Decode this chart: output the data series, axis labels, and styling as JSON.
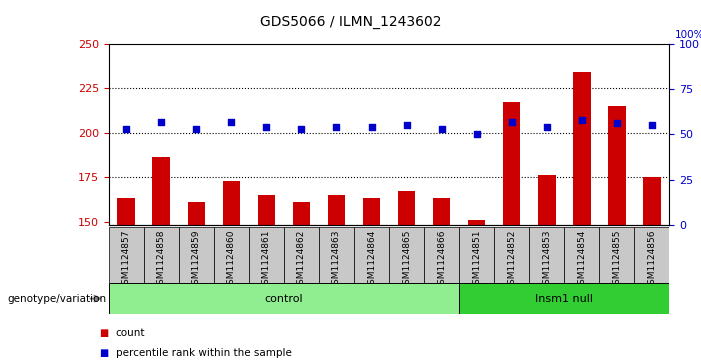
{
  "title": "GDS5066 / ILMN_1243602",
  "samples": [
    "GSM1124857",
    "GSM1124858",
    "GSM1124859",
    "GSM1124860",
    "GSM1124861",
    "GSM1124862",
    "GSM1124863",
    "GSM1124864",
    "GSM1124865",
    "GSM1124866",
    "GSM1124851",
    "GSM1124852",
    "GSM1124853",
    "GSM1124854",
    "GSM1124855",
    "GSM1124856"
  ],
  "counts": [
    163,
    186,
    161,
    173,
    165,
    161,
    165,
    163,
    167,
    163,
    151,
    217,
    176,
    234,
    215,
    175
  ],
  "percentiles": [
    53,
    57,
    53,
    57,
    54,
    53,
    54,
    54,
    55,
    53,
    50,
    57,
    54,
    58,
    56,
    55
  ],
  "n_control": 10,
  "n_insm1": 6,
  "ylim_left": [
    148,
    250
  ],
  "ylim_right": [
    0,
    100
  ],
  "yticks_left": [
    150,
    175,
    200,
    225,
    250
  ],
  "yticks_right": [
    0,
    25,
    50,
    75,
    100
  ],
  "bar_color": "#CC0000",
  "dot_color": "#0000CC",
  "bar_width": 0.5,
  "dot_size": 18,
  "bg_color": "#C8C8C8",
  "left_label_color": "#CC0000",
  "right_label_color": "#0000CC",
  "control_color": "#90EE90",
  "insm1_color": "#32CD32",
  "legend_items": [
    {
      "label": "count",
      "color": "#CC0000"
    },
    {
      "label": "percentile rank within the sample",
      "color": "#0000CC"
    }
  ],
  "genotype_label": "genotype/variation",
  "control_label": "control",
  "insm1_label": "Insm1 null"
}
